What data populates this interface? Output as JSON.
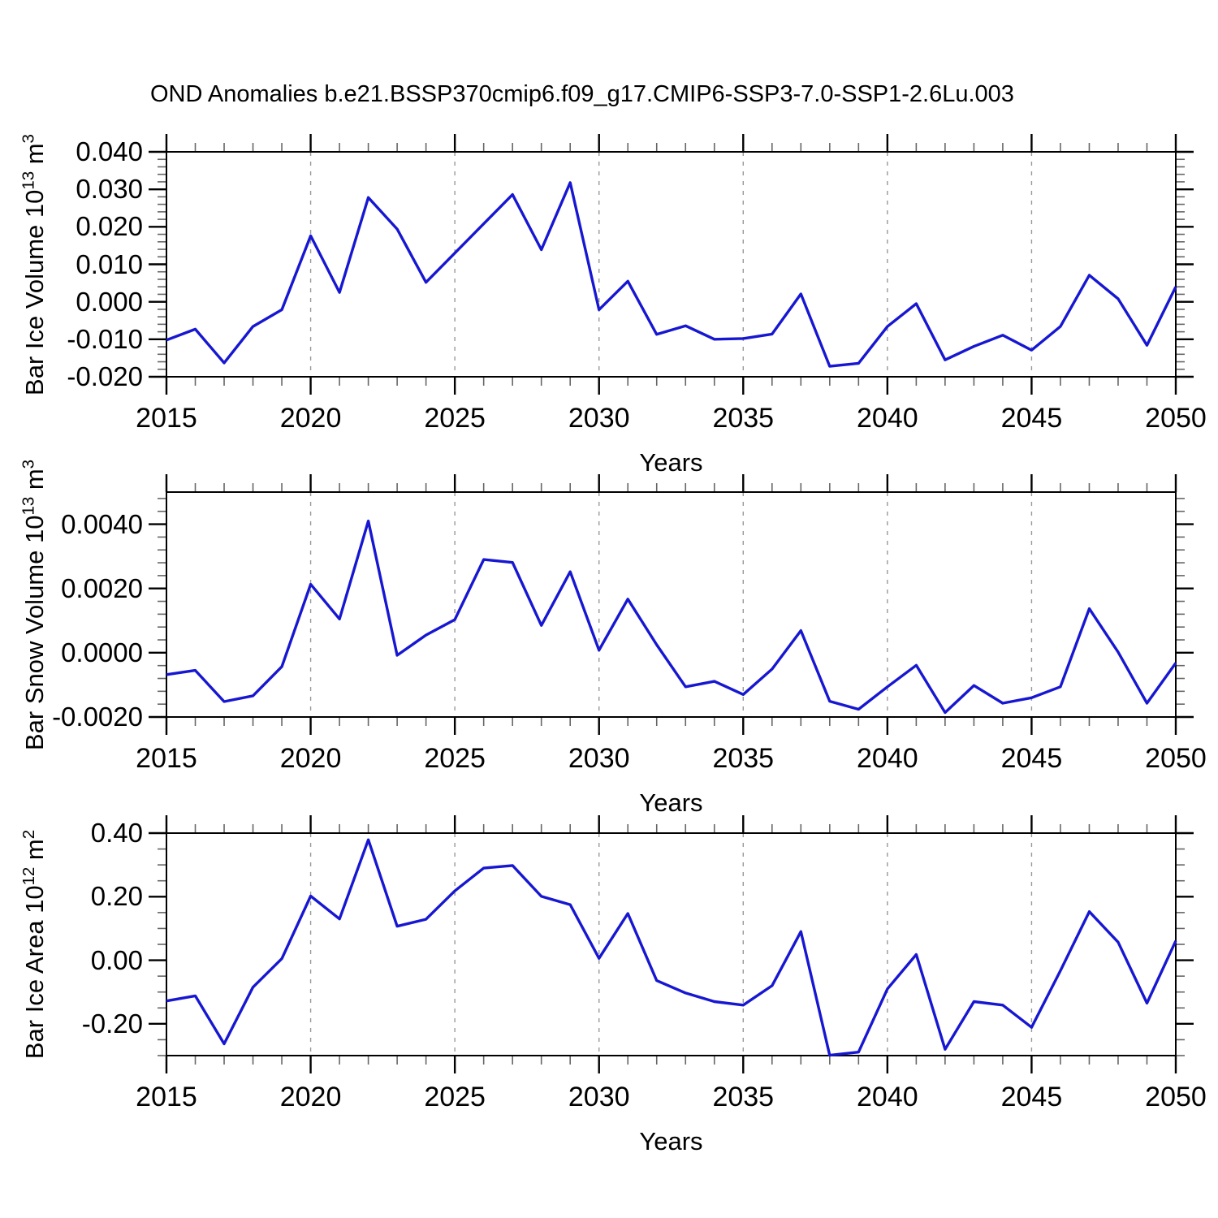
{
  "title": "OND Anomalies b.e21.BSSP370cmip6.f09_g17.CMIP6-SSP3-7.0-SSP1-2.6Lu.003",
  "line_color": "#1717d2",
  "grid_color": "#999999",
  "x_axis": {
    "label": "Years",
    "years": [
      2015,
      2016,
      2017,
      2018,
      2019,
      2020,
      2021,
      2022,
      2023,
      2024,
      2025,
      2026,
      2027,
      2028,
      2029,
      2030,
      2031,
      2032,
      2033,
      2034,
      2035,
      2036,
      2037,
      2038,
      2039,
      2040,
      2041,
      2042,
      2043,
      2044,
      2045,
      2046,
      2047,
      2048,
      2049,
      2050
    ],
    "major_tick_years": [
      2015,
      2020,
      2025,
      2030,
      2035,
      2040,
      2045,
      2050
    ],
    "major_tick_labels": [
      "2015",
      "2020",
      "2025",
      "2030",
      "2035",
      "2040",
      "2045",
      "2050"
    ],
    "gridline_years": [
      2020,
      2025,
      2030,
      2035,
      2040,
      2045
    ]
  },
  "chart_data": [
    {
      "type": "line",
      "name": "bar-ice-volume",
      "ylabel_text": "Bar Ice Volume 10^13 m^3",
      "ylabel_parts": {
        "pre": "Bar Ice Volume 10",
        "sup1": "13",
        "mid": " m",
        "sup2": "3"
      },
      "xlabel": "Years",
      "ylim": [
        -0.02,
        0.04
      ],
      "ytick_values": [
        0.04,
        0.03,
        0.02,
        0.01,
        0.0,
        -0.01,
        -0.02
      ],
      "ytick_labels": [
        "0.040",
        "0.030",
        "0.020",
        "0.010",
        "0.000",
        "-0.010",
        "-0.020"
      ],
      "y_minor_step": 0.002,
      "values": [
        -0.0102,
        -0.0073,
        -0.0163,
        -0.0066,
        -0.0021,
        0.0176,
        0.0025,
        0.0278,
        0.0194,
        0.0052,
        0.013,
        0.0208,
        0.0286,
        0.0139,
        0.0318,
        -0.0021,
        0.0055,
        -0.0087,
        -0.0064,
        -0.01,
        -0.0098,
        -0.0086,
        0.0021,
        -0.0172,
        -0.0164,
        -0.0066,
        -0.0005,
        -0.0155,
        -0.0119,
        -0.0089,
        -0.0129,
        -0.0066,
        0.0071,
        0.0008,
        -0.0116,
        0.004
      ]
    },
    {
      "type": "line",
      "name": "bar-snow-volume",
      "ylabel_text": "Bar Snow Volume 10^13 m^3",
      "ylabel_parts": {
        "pre": "Bar Snow Volume 10",
        "sup1": "13",
        "mid": " m",
        "sup2": "3"
      },
      "xlabel": "Years",
      "ylim": [
        -0.002,
        0.005
      ],
      "ytick_values": [
        0.004,
        0.002,
        0.0,
        -0.002
      ],
      "ytick_labels": [
        "0.0040",
        "0.0020",
        "0.0000",
        "-0.0020"
      ],
      "y_minor_step": 0.0004,
      "values": [
        -0.00068,
        -0.00055,
        -0.00152,
        -0.00134,
        -0.00043,
        0.00213,
        0.00105,
        0.0041,
        -8e-05,
        0.00055,
        0.00103,
        0.0029,
        0.00281,
        0.00085,
        0.00252,
        8e-05,
        0.00167,
        0.00025,
        -0.00106,
        -0.00089,
        -0.0013,
        -0.00051,
        0.00069,
        -0.00151,
        -0.00176,
        -0.00106,
        -0.00039,
        -0.00186,
        -0.00102,
        -0.00157,
        -0.0014,
        -0.00106,
        0.00137,
        2e-05,
        -0.00157,
        -0.00032
      ]
    },
    {
      "type": "line",
      "name": "bar-ice-area",
      "ylabel_text": "Bar Ice Area 10^12 m^2",
      "ylabel_parts": {
        "pre": "Bar Ice Area 10",
        "sup1": "12",
        "mid": " m",
        "sup2": "2"
      },
      "xlabel": "Years",
      "ylim": [
        -0.3,
        0.4
      ],
      "ytick_values": [
        0.4,
        0.2,
        0.0,
        -0.2
      ],
      "ytick_labels": [
        "0.40",
        "0.20",
        "0.00",
        "-0.20"
      ],
      "y_minor_step": 0.05,
      "values": [
        -0.128,
        -0.112,
        -0.263,
        -0.085,
        0.005,
        0.202,
        0.13,
        0.379,
        0.107,
        0.129,
        0.218,
        0.29,
        0.298,
        0.201,
        0.175,
        0.006,
        0.147,
        -0.064,
        -0.103,
        -0.13,
        -0.141,
        -0.08,
        0.09,
        -0.299,
        -0.289,
        -0.09,
        0.018,
        -0.28,
        -0.13,
        -0.141,
        -0.211,
        -0.033,
        0.153,
        0.057,
        -0.135,
        0.061
      ]
    }
  ]
}
